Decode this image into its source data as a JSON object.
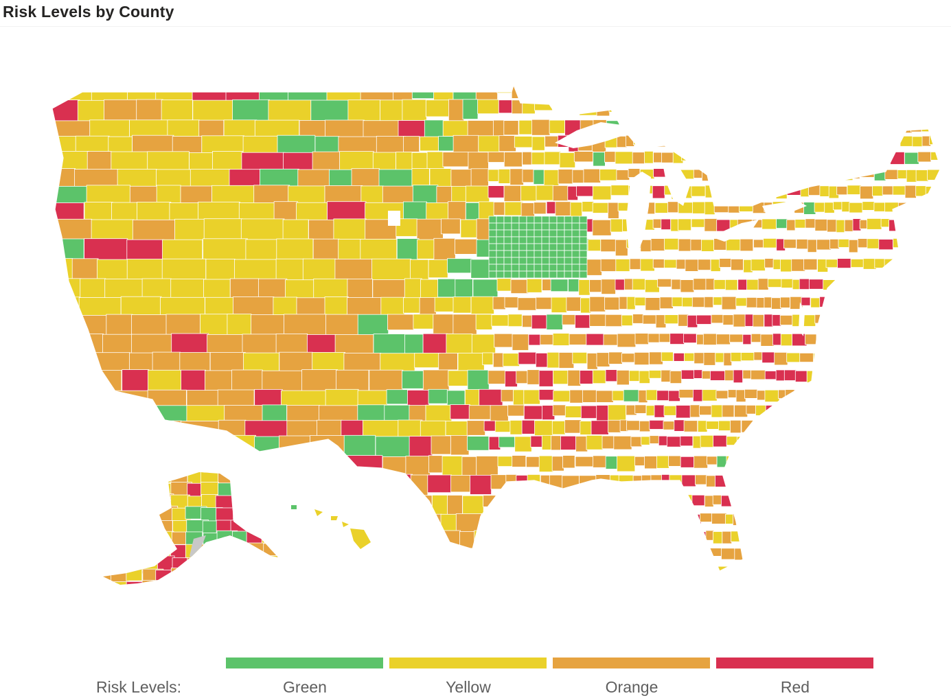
{
  "title": "Risk Levels by County",
  "legend": {
    "title": "Risk Levels:",
    "items": [
      {
        "label": "Green",
        "color": "#5cc36a"
      },
      {
        "label": "Yellow",
        "color": "#ead12a"
      },
      {
        "label": "Orange",
        "color": "#e6a340"
      },
      {
        "label": "Red",
        "color": "#d93050"
      }
    ]
  },
  "colors": {
    "border": "#ffffff",
    "no_data": "#c8c8c8"
  }
}
